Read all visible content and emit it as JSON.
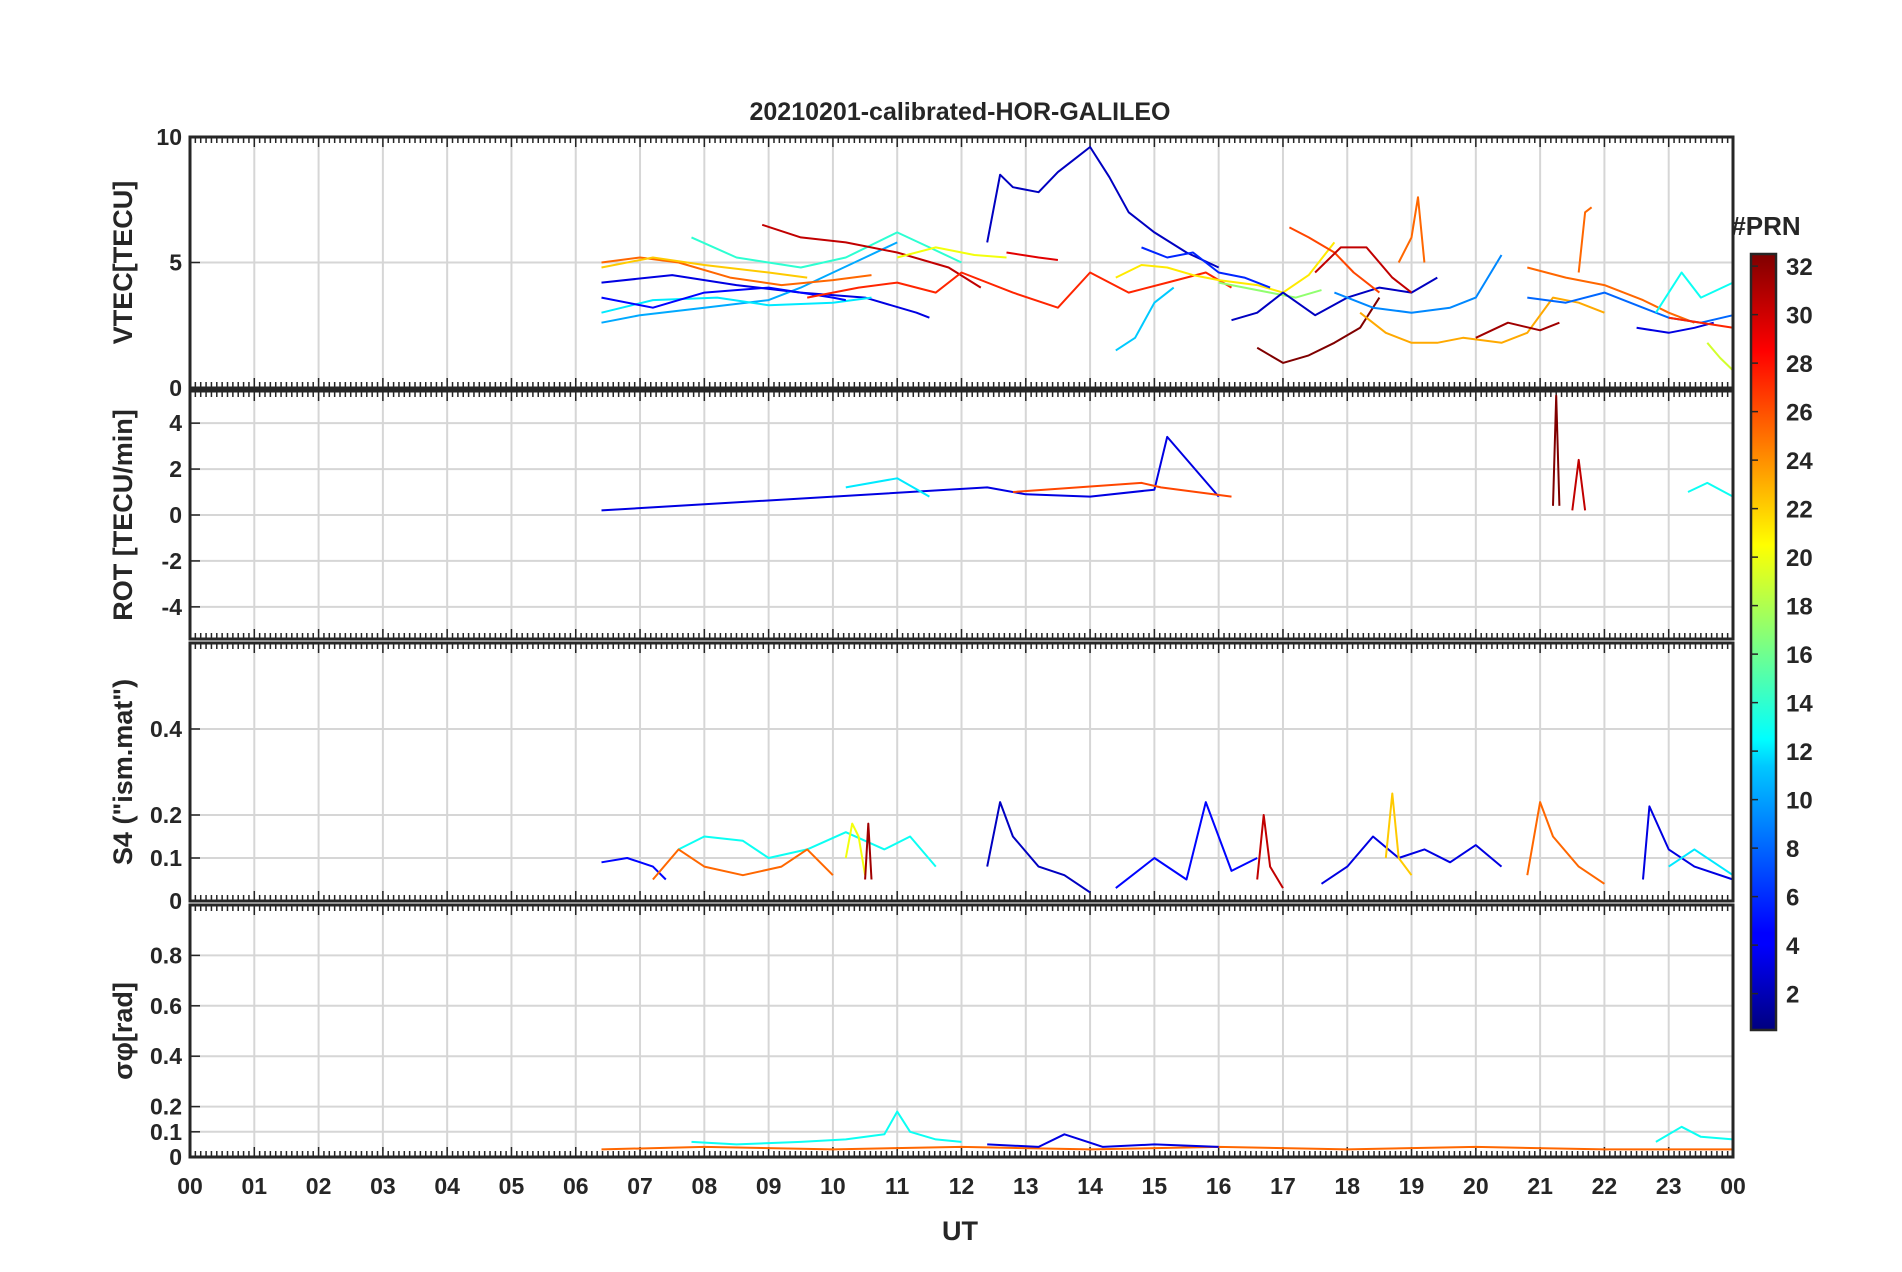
{
  "chart_data": {
    "type": "line",
    "title": "20210201-calibrated-HOR-GALILEO",
    "xlabel": "UT",
    "x_ticks": [
      "00",
      "01",
      "02",
      "03",
      "04",
      "05",
      "06",
      "07",
      "08",
      "09",
      "10",
      "11",
      "12",
      "13",
      "14",
      "15",
      "16",
      "17",
      "18",
      "19",
      "20",
      "21",
      "22",
      "23",
      "00"
    ],
    "xlim": [
      0,
      24
    ],
    "grid": true,
    "colorbar": {
      "label": "#PRN",
      "range": [
        1,
        32
      ],
      "ticks": [
        "2",
        "4",
        "6",
        "8",
        "10",
        "12",
        "14",
        "16",
        "18",
        "20",
        "22",
        "24",
        "26",
        "28",
        "30",
        "32"
      ],
      "colormap": "jet"
    },
    "panels": [
      {
        "id": "vtec",
        "ylabel": "VTEC[TECU]",
        "ylim": [
          0,
          10
        ],
        "y_ticks": [
          "0",
          "5",
          "10"
        ],
        "series": [
          {
            "prn": 4,
            "x": [
              6.4,
              7.5,
              8.5,
              9.5,
              10.5,
              11.3,
              11.5
            ],
            "y": [
              4.2,
              4.5,
              4.1,
              3.8,
              3.6,
              3.0,
              2.8
            ]
          },
          {
            "prn": 10,
            "x": [
              6.4,
              7.0,
              8.0,
              9.0,
              9.5,
              10.5,
              11.0
            ],
            "y": [
              2.6,
              2.9,
              3.2,
              3.5,
              4.0,
              5.2,
              5.8
            ]
          },
          {
            "prn": 12,
            "x": [
              6.4,
              7.2,
              8.2,
              9.0,
              10.0,
              10.6
            ],
            "y": [
              3.0,
              3.5,
              3.6,
              3.3,
              3.4,
              3.6
            ]
          },
          {
            "prn": 25,
            "x": [
              6.4,
              7.0,
              7.6,
              8.4,
              9.2,
              10.0,
              10.6
            ],
            "y": [
              5.0,
              5.2,
              5.0,
              4.4,
              4.1,
              4.3,
              4.5
            ]
          },
          {
            "prn": 22,
            "x": [
              6.4,
              7.2,
              8.0,
              9.0,
              9.6
            ],
            "y": [
              4.8,
              5.2,
              4.9,
              4.6,
              4.4
            ]
          },
          {
            "prn": 5,
            "x": [
              6.4,
              7.2,
              8.0,
              9.0,
              10.0,
              10.2
            ],
            "y": [
              3.6,
              3.2,
              3.8,
              4.0,
              3.6,
              3.5
            ]
          },
          {
            "prn": 14,
            "x": [
              7.8,
              8.5,
              9.5,
              10.2,
              11.0,
              11.5,
              12.0
            ],
            "y": [
              6.0,
              5.2,
              4.8,
              5.2,
              6.2,
              5.6,
              5.0
            ]
          },
          {
            "prn": 30,
            "x": [
              8.9,
              9.5,
              10.2,
              11.0,
              11.8,
              12.3
            ],
            "y": [
              6.5,
              6.0,
              5.8,
              5.4,
              4.8,
              4.0
            ]
          },
          {
            "prn": 27,
            "x": [
              9.6,
              10.4,
              11.0,
              11.6,
              12.0,
              12.8,
              13.5,
              14.0,
              14.6,
              15.2,
              15.8,
              16.2
            ],
            "y": [
              3.6,
              4.0,
              4.2,
              3.8,
              4.6,
              3.8,
              3.2,
              4.6,
              3.8,
              4.2,
              4.6,
              4.0
            ]
          },
          {
            "prn": 20,
            "x": [
              11.0,
              11.6,
              12.2,
              12.7
            ],
            "y": [
              5.2,
              5.6,
              5.3,
              5.2
            ]
          },
          {
            "prn": 29,
            "x": [
              12.7,
              13.2,
              13.5
            ],
            "y": [
              5.4,
              5.2,
              5.1
            ]
          },
          {
            "prn": 3,
            "x": [
              12.4,
              12.6,
              12.8,
              13.2,
              13.5,
              13.8,
              14.0,
              14.3,
              14.6,
              15.0,
              15.5,
              16.0
            ],
            "y": [
              5.8,
              8.5,
              8.0,
              7.8,
              8.6,
              9.2,
              9.6,
              8.4,
              7.0,
              6.2,
              5.4,
              4.8
            ]
          },
          {
            "prn": 21,
            "x": [
              14.4,
              14.8,
              15.2,
              15.6,
              16.0,
              16.6,
              17.0,
              17.4,
              17.8
            ],
            "y": [
              4.4,
              4.9,
              4.8,
              4.5,
              4.3,
              4.1,
              3.8,
              4.5,
              5.8
            ]
          },
          {
            "prn": 11,
            "x": [
              14.4,
              14.7,
              15.0,
              15.3
            ],
            "y": [
              1.5,
              2.0,
              3.4,
              4.0
            ]
          },
          {
            "prn": 6,
            "x": [
              14.8,
              15.2,
              15.6,
              16.0,
              16.4,
              16.8
            ],
            "y": [
              5.6,
              5.2,
              5.4,
              4.6,
              4.4,
              4.0
            ]
          },
          {
            "prn": 17,
            "x": [
              16.0,
              16.4,
              16.8,
              17.2,
              17.6
            ],
            "y": [
              4.2,
              4.0,
              3.8,
              3.6,
              3.9
            ]
          },
          {
            "prn": 3,
            "x": [
              16.2,
              16.6,
              17.0,
              17.5,
              18.0,
              18.5,
              19.0,
              19.4
            ],
            "y": [
              2.7,
              3.0,
              3.8,
              2.9,
              3.6,
              4.0,
              3.8,
              4.4
            ]
          },
          {
            "prn": 26,
            "x": [
              17.1,
              17.4,
              17.8,
              18.1,
              18.5
            ],
            "y": [
              6.4,
              6.0,
              5.4,
              4.6,
              3.8
            ]
          },
          {
            "prn": 30,
            "x": [
              17.5,
              17.9,
              18.3,
              18.7,
              19.0
            ],
            "y": [
              4.6,
              5.6,
              5.6,
              4.4,
              3.8
            ]
          },
          {
            "prn": 32,
            "x": [
              16.6,
              17.0,
              17.4,
              17.8,
              18.2,
              18.5
            ],
            "y": [
              1.6,
              1.0,
              1.3,
              1.8,
              2.4,
              3.6
            ]
          },
          {
            "prn": 9,
            "x": [
              17.8,
              18.4,
              19.0,
              19.6,
              20.0,
              20.4
            ],
            "y": [
              3.8,
              3.2,
              3.0,
              3.2,
              3.6,
              5.3
            ]
          },
          {
            "prn": 23,
            "x": [
              18.2,
              18.6,
              19.0,
              19.4,
              19.8,
              20.4,
              20.8,
              21.2,
              21.6,
              22.0
            ],
            "y": [
              3.0,
              2.2,
              1.8,
              1.8,
              2.0,
              1.8,
              2.2,
              3.6,
              3.4,
              3.0
            ]
          },
          {
            "prn": 25,
            "x": [
              18.8,
              19.0,
              19.1,
              19.2
            ],
            "y": [
              5.0,
              6.0,
              7.6,
              5.0
            ]
          },
          {
            "prn": 31,
            "x": [
              20.0,
              20.5,
              21.0,
              21.3
            ],
            "y": [
              2.0,
              2.6,
              2.3,
              2.6
            ]
          },
          {
            "prn": 25,
            "x": [
              20.8,
              21.4,
              22.0,
              22.6,
              23.0,
              23.4
            ],
            "y": [
              4.8,
              4.4,
              4.1,
              3.5,
              3.0,
              2.6
            ]
          },
          {
            "prn": 25,
            "x": [
              21.6,
              21.7,
              21.8
            ],
            "y": [
              4.6,
              7.0,
              7.2
            ]
          },
          {
            "prn": 8,
            "x": [
              20.8,
              21.4,
              22.0,
              22.6,
              23.0,
              23.5,
              24.0
            ],
            "y": [
              3.6,
              3.4,
              3.8,
              3.2,
              2.8,
              2.6,
              2.9
            ]
          },
          {
            "prn": 4,
            "x": [
              22.5,
              23.0,
              23.4,
              23.7
            ],
            "y": [
              2.4,
              2.2,
              2.4,
              2.6
            ]
          },
          {
            "prn": 13,
            "x": [
              22.8,
              23.2,
              23.5,
              24.0
            ],
            "y": [
              3.0,
              4.6,
              3.6,
              4.2
            ]
          },
          {
            "prn": 19,
            "x": [
              23.6,
              23.8,
              24.0
            ],
            "y": [
              1.8,
              1.2,
              0.7
            ]
          },
          {
            "prn": 27,
            "x": [
              23.0,
              23.5,
              24.0
            ],
            "y": [
              2.8,
              2.6,
              2.4
            ]
          }
        ]
      },
      {
        "id": "rot",
        "ylabel": "ROT [TECU/min]",
        "ylim": [
          -5.4,
          5.4
        ],
        "y_ticks": [
          "-4",
          "-2",
          "0",
          "2",
          "4"
        ],
        "series": [
          {
            "prn": 4,
            "x": [
              6.4,
              12.4,
              13.0,
              14.0,
              15.0,
              15.2,
              16.0
            ],
            "y": [
              0.2,
              1.2,
              0.9,
              0.8,
              1.1,
              3.4,
              0.8
            ]
          },
          {
            "prn": 26,
            "x": [
              12.8,
              14.8,
              15.1,
              16.2
            ],
            "y": [
              1.0,
              1.4,
              1.2,
              0.8
            ]
          },
          {
            "prn": 12,
            "x": [
              10.2,
              11.0,
              11.5
            ],
            "y": [
              1.2,
              1.6,
              0.8
            ]
          },
          {
            "prn": 32,
            "x": [
              21.2,
              21.25,
              21.3
            ],
            "y": [
              0.4,
              5.2,
              0.4
            ]
          },
          {
            "prn": 30,
            "x": [
              21.5,
              21.6,
              21.7
            ],
            "y": [
              0.2,
              2.4,
              0.2
            ]
          },
          {
            "prn": 13,
            "x": [
              23.3,
              23.6,
              24.0
            ],
            "y": [
              1.0,
              1.4,
              0.8
            ]
          }
        ]
      },
      {
        "id": "s4",
        "ylabel": "S4 (\"ism.mat\")",
        "ylim": [
          0,
          0.6
        ],
        "y_ticks": [
          "0",
          "0.1",
          "0.2",
          "0.4"
        ],
        "series": [
          {
            "prn": 5,
            "x": [
              6.4,
              6.8,
              7.2,
              7.4
            ],
            "y": [
              0.09,
              0.1,
              0.08,
              0.05
            ]
          },
          {
            "prn": 13,
            "x": [
              7.6,
              8.0,
              8.6,
              9.0,
              9.6,
              10.2,
              10.8,
              11.2,
              11.6
            ],
            "y": [
              0.12,
              0.15,
              0.14,
              0.1,
              0.12,
              0.16,
              0.12,
              0.15,
              0.08
            ]
          },
          {
            "prn": 25,
            "x": [
              7.2,
              7.6,
              8.0,
              8.6,
              9.2,
              9.6,
              10.0
            ],
            "y": [
              0.05,
              0.12,
              0.08,
              0.06,
              0.08,
              0.12,
              0.06
            ]
          },
          {
            "prn": 20,
            "x": [
              10.2,
              10.3,
              10.4,
              10.5
            ],
            "y": [
              0.1,
              0.18,
              0.15,
              0.06
            ]
          },
          {
            "prn": 31,
            "x": [
              10.5,
              10.55,
              10.6
            ],
            "y": [
              0.05,
              0.18,
              0.05
            ]
          },
          {
            "prn": 3,
            "x": [
              12.4,
              12.6,
              12.8,
              13.2,
              13.6,
              14.0
            ],
            "y": [
              0.08,
              0.23,
              0.15,
              0.08,
              0.06,
              0.02
            ]
          },
          {
            "prn": 5,
            "x": [
              14.4,
              15.0,
              15.5,
              15.8,
              16.2,
              16.6
            ],
            "y": [
              0.03,
              0.1,
              0.05,
              0.23,
              0.07,
              0.1
            ]
          },
          {
            "prn": 30,
            "x": [
              16.6,
              16.7,
              16.8,
              17.0
            ],
            "y": [
              0.05,
              0.2,
              0.08,
              0.03
            ]
          },
          {
            "prn": 4,
            "x": [
              17.6,
              18.0,
              18.4,
              18.8,
              19.2,
              19.6,
              20.0,
              20.4
            ],
            "y": [
              0.04,
              0.08,
              0.15,
              0.1,
              0.12,
              0.09,
              0.13,
              0.08
            ]
          },
          {
            "prn": 22,
            "x": [
              18.6,
              18.7,
              18.8,
              19.0
            ],
            "y": [
              0.1,
              0.25,
              0.1,
              0.06
            ]
          },
          {
            "prn": 25,
            "x": [
              20.8,
              21.0,
              21.2,
              21.6,
              22.0
            ],
            "y": [
              0.06,
              0.23,
              0.15,
              0.08,
              0.04
            ]
          },
          {
            "prn": 4,
            "x": [
              22.6,
              22.7,
              23.0,
              23.4,
              24.0
            ],
            "y": [
              0.05,
              0.22,
              0.12,
              0.08,
              0.05
            ]
          },
          {
            "prn": 12,
            "x": [
              23.0,
              23.4,
              24.0
            ],
            "y": [
              0.08,
              0.12,
              0.06
            ]
          }
        ]
      },
      {
        "id": "sigma_phi",
        "ylabel": "σφ[rad]",
        "ylim": [
          0,
          1.0
        ],
        "y_ticks": [
          "0",
          "0.1",
          "0.2",
          "0.4",
          "0.6",
          "0.8"
        ],
        "series": [
          {
            "prn": 13,
            "x": [
              7.8,
              8.5,
              9.5,
              10.2,
              10.8,
              11.0,
              11.2,
              11.6,
              12.0
            ],
            "y": [
              0.06,
              0.05,
              0.06,
              0.07,
              0.09,
              0.18,
              0.1,
              0.07,
              0.06
            ]
          },
          {
            "prn": 25,
            "x": [
              6.4,
              8.0,
              10.0,
              12.0,
              14.0,
              16.0,
              18.0,
              20.0,
              22.0,
              24.0
            ],
            "y": [
              0.03,
              0.04,
              0.03,
              0.04,
              0.03,
              0.04,
              0.03,
              0.04,
              0.03,
              0.03
            ]
          },
          {
            "prn": 4,
            "x": [
              12.4,
              13.2,
              13.6,
              14.2,
              15.0,
              16.0
            ],
            "y": [
              0.05,
              0.04,
              0.09,
              0.04,
              0.05,
              0.04
            ]
          },
          {
            "prn": 13,
            "x": [
              22.8,
              23.2,
              23.5,
              24.0
            ],
            "y": [
              0.06,
              0.12,
              0.08,
              0.07
            ]
          }
        ]
      }
    ]
  }
}
